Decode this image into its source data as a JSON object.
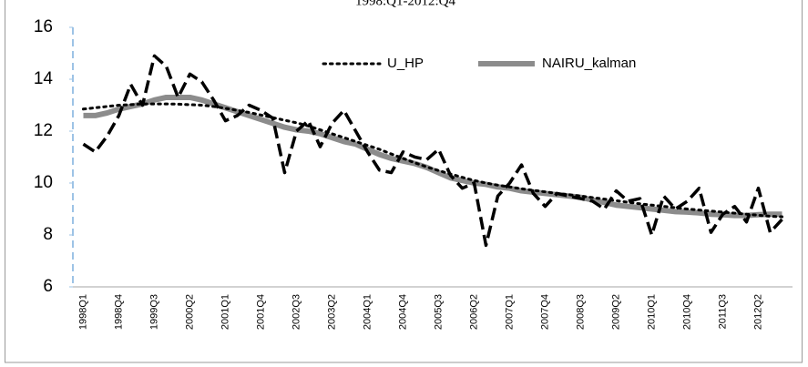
{
  "chart_data": {
    "type": "line",
    "title": "1998:Q1-2012:Q4",
    "categories": [
      "1998Q1",
      null,
      null,
      "1998Q4",
      null,
      null,
      "1999Q3",
      null,
      null,
      "2000Q2",
      null,
      null,
      "2001Q1",
      null,
      null,
      "2001Q4",
      null,
      null,
      "2002Q3",
      null,
      null,
      "2003Q2",
      null,
      null,
      "2004Q1",
      null,
      null,
      "2004Q4",
      null,
      null,
      "2005Q3",
      null,
      null,
      "2006Q2",
      null,
      null,
      "2007Q1",
      null,
      null,
      "2007Q4",
      null,
      null,
      "2008Q3",
      null,
      null,
      "2009Q2",
      null,
      null,
      "2010Q1",
      null,
      null,
      "2010Q4",
      null,
      null,
      "2011Q3",
      null,
      null,
      "2012Q2",
      null,
      null
    ],
    "series": [
      {
        "color": "#000000",
        "style": "dashed",
        "width": 3.5,
        "values": [
          11.5,
          11.2,
          11.8,
          12.6,
          13.8,
          13.0,
          14.9,
          14.5,
          13.3,
          14.2,
          13.9,
          13.2,
          12.4,
          12.6,
          13.0,
          12.8,
          12.5,
          10.4,
          12.0,
          12.4,
          11.4,
          12.3,
          12.8,
          12.0,
          11.2,
          10.5,
          10.4,
          11.2,
          11.0,
          10.9,
          11.3,
          10.3,
          9.8,
          10.0,
          7.6,
          9.5,
          10.0,
          10.7,
          9.6,
          9.1,
          9.6,
          9.5,
          9.4,
          9.3,
          9.0,
          9.7,
          9.3,
          9.4,
          8.0,
          9.5,
          9.0,
          9.3,
          9.8,
          8.1,
          8.8,
          9.1,
          8.5,
          9.8,
          8.1,
          8.6
        ]
      },
      {
        "name": "U_HP",
        "color": "#000000",
        "style": "dotted",
        "width": 3,
        "values": [
          12.85,
          12.9,
          12.95,
          13.0,
          13.02,
          13.05,
          13.05,
          13.05,
          13.04,
          13.02,
          13.0,
          12.95,
          12.88,
          12.8,
          12.72,
          12.62,
          12.52,
          12.42,
          12.32,
          12.2,
          12.05,
          11.9,
          11.75,
          11.6,
          11.45,
          11.3,
          11.12,
          10.95,
          10.78,
          10.62,
          10.48,
          10.35,
          10.22,
          10.1,
          10.0,
          9.92,
          9.85,
          9.78,
          9.72,
          9.66,
          9.6,
          9.55,
          9.5,
          9.44,
          9.38,
          9.32,
          9.26,
          9.2,
          9.15,
          9.1,
          9.05,
          9.0,
          8.96,
          8.92,
          8.88,
          8.84,
          8.8,
          8.76,
          8.72,
          8.7
        ]
      },
      {
        "name": "NAIRU_kalman",
        "color": "#8c8c8c",
        "style": "solid",
        "width": 6,
        "values": [
          12.6,
          12.6,
          12.7,
          12.85,
          12.95,
          13.05,
          13.2,
          13.3,
          13.3,
          13.3,
          13.2,
          13.05,
          12.9,
          12.75,
          12.6,
          12.45,
          12.3,
          12.15,
          12.05,
          12.0,
          11.9,
          11.75,
          11.6,
          11.5,
          11.3,
          11.1,
          10.95,
          10.85,
          10.75,
          10.6,
          10.4,
          10.2,
          10.1,
          10.0,
          9.95,
          9.85,
          9.8,
          9.7,
          9.65,
          9.6,
          9.55,
          9.5,
          9.45,
          9.35,
          9.25,
          9.15,
          9.1,
          9.05,
          9.0,
          8.95,
          8.9,
          8.88,
          8.85,
          8.8,
          8.78,
          8.75,
          8.75,
          8.78,
          8.8,
          8.8
        ]
      }
    ],
    "ylim": [
      6,
      16
    ],
    "yticks": [
      6,
      8,
      10,
      12,
      14,
      16
    ],
    "grid": false,
    "legend": "top"
  }
}
